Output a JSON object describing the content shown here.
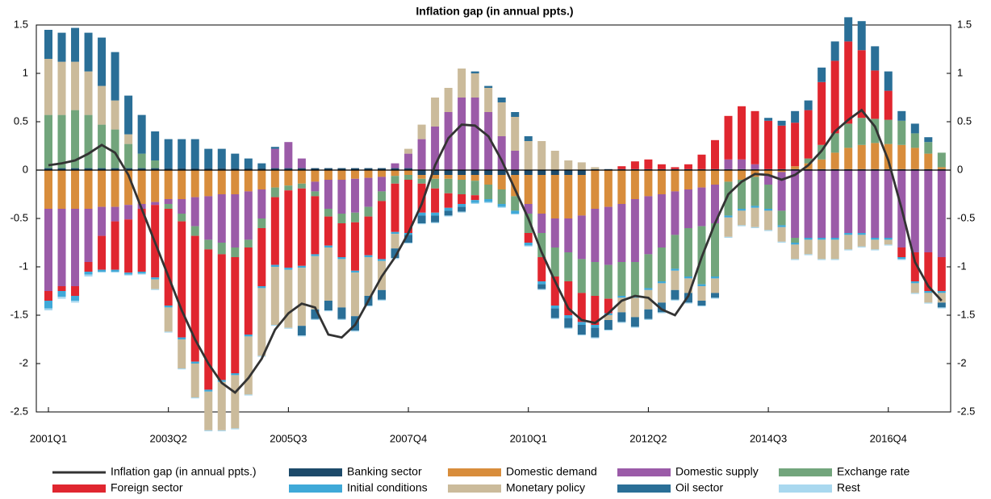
{
  "chart_data": {
    "type": "bar",
    "stacked": true,
    "title": "Inflation gap (in annual ppts.)",
    "categories": [
      "2001Q1",
      null,
      null,
      null,
      null,
      null,
      null,
      null,
      null,
      "2003Q2",
      null,
      null,
      null,
      null,
      null,
      null,
      null,
      null,
      "2005Q3",
      null,
      null,
      null,
      null,
      null,
      null,
      null,
      null,
      "2007Q4",
      null,
      null,
      null,
      null,
      null,
      null,
      null,
      null,
      "2010Q1",
      null,
      null,
      null,
      null,
      null,
      null,
      null,
      null,
      "2012Q2",
      null,
      null,
      null,
      null,
      null,
      null,
      null,
      null,
      "2014Q3",
      null,
      null,
      null,
      null,
      null,
      null,
      null,
      null,
      "2016Q4",
      null,
      null,
      null,
      null
    ],
    "ylim": [
      -2.5,
      1.5
    ],
    "yticks": [
      1.5,
      1,
      0.5,
      0,
      -0.5,
      -1,
      -1.5,
      -2,
      -2.5
    ],
    "line": {
      "name": "Inflation gap (in annual ppts.)",
      "color": "#333333",
      "values": [
        0.05,
        0.07,
        0.1,
        0.17,
        0.26,
        0.18,
        -0.05,
        -0.4,
        -0.75,
        -1.1,
        -1.45,
        -1.75,
        -2.0,
        -2.2,
        -2.3,
        -2.15,
        -1.95,
        -1.65,
        -1.48,
        -1.38,
        -1.42,
        -1.7,
        -1.73,
        -1.6,
        -1.35,
        -1.1,
        -0.9,
        -0.65,
        -0.35,
        0.05,
        0.33,
        0.47,
        0.46,
        0.35,
        0.1,
        -0.2,
        -0.5,
        -0.85,
        -1.15,
        -1.43,
        -1.55,
        -1.58,
        -1.48,
        -1.35,
        -1.3,
        -1.32,
        -1.44,
        -1.5,
        -1.3,
        -0.9,
        -0.55,
        -0.25,
        -0.12,
        -0.04,
        -0.05,
        -0.1,
        -0.05,
        0.05,
        0.2,
        0.4,
        0.52,
        0.62,
        0.45,
        0.1,
        -0.4,
        -0.95,
        -1.2,
        -1.35
      ]
    },
    "series": [
      {
        "name": "Banking sector",
        "color": "#1d4a6a",
        "values": [
          0.02,
          0.02,
          0.02,
          0.02,
          0.02,
          0.02,
          0.02,
          0.02,
          0.02,
          0.02,
          0.02,
          0.02,
          0.02,
          0.02,
          0.02,
          0.02,
          0.02,
          0.02,
          0.02,
          0.02,
          0.02,
          0.02,
          0.02,
          0.02,
          0.02,
          0.02,
          0.02,
          0.02,
          -0.05,
          -0.05,
          -0.05,
          -0.05,
          -0.05,
          -0.05,
          -0.05,
          -0.05,
          -0.05,
          -0.05,
          -0.05,
          -0.05,
          -0.05,
          0.01,
          0.01,
          0.01,
          0.01,
          0.01,
          0.01,
          0.01,
          0.01,
          0.01,
          0.01,
          0.01,
          0.01,
          0.01,
          0.01,
          0.01,
          0.01,
          0.01,
          0.01,
          0.01,
          0.01,
          0.01,
          0.01,
          0.01,
          0.01,
          0.01,
          0.01,
          0.01
        ]
      },
      {
        "name": "Domestic demand",
        "color": "#d88d3c",
        "values": [
          -0.4,
          -0.4,
          -0.4,
          -0.4,
          -0.38,
          -0.38,
          -0.36,
          -0.35,
          -0.33,
          -0.3,
          -0.3,
          -0.28,
          -0.27,
          -0.25,
          -0.25,
          -0.22,
          -0.2,
          -0.18,
          -0.16,
          -0.14,
          -0.12,
          -0.1,
          -0.1,
          -0.09,
          -0.08,
          -0.07,
          -0.06,
          -0.05,
          -0.04,
          -0.04,
          -0.04,
          -0.05,
          -0.06,
          -0.1,
          -0.15,
          -0.22,
          -0.3,
          -0.4,
          -0.45,
          -0.45,
          -0.42,
          -0.4,
          -0.38,
          -0.35,
          -0.3,
          -0.27,
          -0.25,
          -0.22,
          -0.2,
          -0.18,
          -0.15,
          -0.12,
          -0.1,
          -0.07,
          -0.05,
          -0.02,
          0.03,
          0.06,
          0.1,
          0.17,
          0.22,
          0.25,
          0.27,
          0.26,
          0.25,
          0.22,
          0.16,
          0.02
        ]
      },
      {
        "name": "Domestic supply",
        "color": "#9b5ba8",
        "values": [
          -0.85,
          -0.8,
          -0.8,
          -0.55,
          -0.3,
          -0.15,
          -0.15,
          -0.05,
          -0.03,
          -0.05,
          -0.15,
          -0.3,
          -0.45,
          -0.5,
          -0.55,
          -0.5,
          -0.3,
          0.2,
          0.27,
          0.1,
          -0.1,
          -0.3,
          -0.35,
          -0.35,
          -0.3,
          -0.15,
          0.05,
          0.15,
          0.32,
          0.45,
          0.6,
          0.75,
          0.75,
          0.6,
          0.35,
          0.2,
          -0.1,
          -0.2,
          -0.3,
          -0.35,
          -0.45,
          -0.55,
          -0.6,
          -0.6,
          -0.65,
          -0.6,
          -0.55,
          -0.45,
          -0.4,
          -0.4,
          -0.4,
          0.1,
          0.1,
          0.05,
          -0.1,
          -0.4,
          -0.7,
          -0.7,
          -0.7,
          -0.7,
          -0.65,
          -0.65,
          -0.7,
          -0.7,
          -0.8,
          -0.85,
          -0.85,
          -0.9
        ]
      },
      {
        "name": "Exchange rate",
        "color": "#72a57c",
        "values": [
          0.55,
          0.55,
          0.6,
          0.55,
          0.45,
          0.4,
          0.25,
          0.15,
          0.08,
          -0.05,
          -0.08,
          -0.1,
          -0.1,
          -0.12,
          -0.1,
          -0.08,
          -0.1,
          -0.1,
          -0.05,
          -0.05,
          -0.05,
          -0.08,
          -0.1,
          -0.1,
          -0.1,
          -0.1,
          -0.08,
          -0.05,
          -0.05,
          -0.1,
          -0.15,
          -0.15,
          -0.15,
          -0.15,
          -0.15,
          -0.15,
          -0.2,
          -0.25,
          -0.3,
          -0.3,
          -0.35,
          -0.35,
          -0.35,
          -0.35,
          -0.35,
          -0.35,
          -0.35,
          -0.35,
          -0.5,
          -0.6,
          -0.55,
          -0.35,
          -0.3,
          -0.3,
          -0.25,
          -0.15,
          -0.05,
          0.05,
          0.15,
          0.2,
          0.25,
          0.28,
          0.25,
          0.25,
          0.25,
          0.15,
          0.12,
          0.15
        ]
      },
      {
        "name": "Foreign sector",
        "color": "#e0262f",
        "values": [
          -0.1,
          -0.05,
          -0.1,
          -0.1,
          -0.35,
          -0.5,
          -0.55,
          -0.65,
          -0.75,
          -1.0,
          -1.2,
          -1.3,
          -1.45,
          -1.3,
          -1.2,
          -0.9,
          -0.6,
          -0.7,
          -0.8,
          -0.8,
          -0.6,
          -0.3,
          -0.35,
          -0.5,
          -0.4,
          -0.6,
          -0.5,
          -0.55,
          -0.3,
          -0.25,
          -0.15,
          -0.1,
          -0.05,
          0,
          0,
          0,
          -0.1,
          -0.25,
          -0.3,
          -0.35,
          -0.3,
          -0.3,
          -0.15,
          0.03,
          0.08,
          0.1,
          0.05,
          0.02,
          0.05,
          0.15,
          0.3,
          0.45,
          0.55,
          0.55,
          0.5,
          0.45,
          0.45,
          0.5,
          0.65,
          0.75,
          0.85,
          0.7,
          0.5,
          0.3,
          -0.1,
          -0.3,
          -0.4,
          -0.35
        ]
      },
      {
        "name": "Initial conditions",
        "color": "#3fa9d8",
        "values": [
          -0.08,
          -0.06,
          -0.05,
          -0.03,
          -0.02,
          -0.02,
          -0.02,
          -0.02,
          -0.02,
          -0.02,
          -0.02,
          -0.02,
          -0.02,
          -0.02,
          -0.02,
          -0.02,
          -0.02,
          -0.02,
          -0.02,
          -0.02,
          -0.02,
          -0.02,
          -0.02,
          -0.02,
          -0.02,
          -0.02,
          -0.02,
          -0.02,
          -0.03,
          -0.03,
          -0.03,
          -0.03,
          -0.03,
          -0.03,
          -0.03,
          -0.03,
          -0.03,
          -0.03,
          -0.03,
          -0.03,
          -0.03,
          -0.03,
          -0.02,
          -0.02,
          -0.02,
          -0.02,
          -0.02,
          -0.02,
          -0.02,
          -0.02,
          -0.02,
          -0.02,
          -0.02,
          -0.02,
          -0.02,
          -0.02,
          -0.02,
          -0.02,
          -0.02,
          -0.02,
          -0.02,
          -0.02,
          -0.02,
          -0.02,
          -0.02,
          -0.02,
          -0.02,
          -0.02
        ]
      },
      {
        "name": "Monetary policy",
        "color": "#cbbb9b",
        "values": [
          0.58,
          0.55,
          0.5,
          0.45,
          0.4,
          0.3,
          0.1,
          0,
          -0.1,
          -0.25,
          -0.3,
          -0.35,
          -0.4,
          -0.5,
          -0.55,
          -0.6,
          -0.7,
          -0.6,
          -0.6,
          -0.6,
          -0.55,
          -0.55,
          -0.5,
          -0.45,
          -0.4,
          -0.3,
          -0.15,
          0.05,
          0.15,
          0.3,
          0.25,
          0.3,
          0.25,
          0.25,
          0.35,
          0.35,
          0.3,
          0.3,
          0.2,
          0.1,
          0.08,
          0.02,
          -0.05,
          -0.15,
          -0.2,
          -0.2,
          -0.2,
          -0.2,
          -0.15,
          -0.15,
          -0.15,
          -0.2,
          -0.15,
          -0.2,
          -0.2,
          -0.15,
          -0.15,
          -0.15,
          -0.2,
          -0.2,
          -0.15,
          -0.12,
          -0.1,
          -0.05,
          0,
          -0.1,
          -0.1,
          -0.1
        ]
      },
      {
        "name": "Oil sector",
        "color": "#2a6f97",
        "values": [
          0.3,
          0.3,
          0.35,
          0.4,
          0.5,
          0.5,
          0.4,
          0.4,
          0.3,
          0.3,
          0.3,
          0.3,
          0.2,
          0.2,
          0.15,
          0.1,
          0.05,
          0.02,
          0,
          -0.1,
          -0.1,
          -0.1,
          -0.12,
          -0.15,
          -0.1,
          -0.1,
          -0.1,
          -0.08,
          -0.08,
          -0.07,
          -0.05,
          -0.05,
          0.02,
          0.02,
          0.05,
          0.05,
          0.05,
          -0.05,
          -0.1,
          -0.1,
          -0.1,
          -0.1,
          -0.1,
          -0.1,
          -0.1,
          -0.1,
          -0.1,
          -0.1,
          -0.1,
          -0.05,
          -0.05,
          0,
          0,
          0,
          0.03,
          0.05,
          0.12,
          0.1,
          0.15,
          0.2,
          0.25,
          0.3,
          0.25,
          0.2,
          0.1,
          0.1,
          0.05,
          -0.05
        ]
      },
      {
        "name": "Rest",
        "color": "#a9d8ef",
        "values": [
          -0.02,
          -0.02,
          -0.02,
          -0.02,
          -0.01,
          -0.01,
          -0.01,
          -0.01,
          -0.01,
          -0.01,
          -0.01,
          -0.01,
          -0.01,
          -0.01,
          -0.01,
          -0.01,
          -0.01,
          -0.01,
          -0.01,
          -0.01,
          -0.01,
          -0.01,
          -0.01,
          -0.01,
          -0.01,
          -0.01,
          -0.01,
          -0.01,
          -0.01,
          -0.01,
          -0.01,
          -0.01,
          -0.01,
          -0.01,
          -0.01,
          -0.01,
          -0.01,
          -0.01,
          -0.01,
          -0.01,
          -0.01,
          -0.01,
          -0.01,
          -0.01,
          -0.01,
          -0.01,
          -0.01,
          -0.01,
          -0.01,
          -0.01,
          -0.01,
          -0.01,
          -0.01,
          -0.01,
          -0.01,
          -0.01,
          -0.01,
          -0.01,
          -0.01,
          -0.01,
          -0.01,
          -0.01,
          -0.01,
          -0.01,
          -0.01,
          -0.01,
          -0.01,
          -0.01
        ]
      }
    ]
  }
}
